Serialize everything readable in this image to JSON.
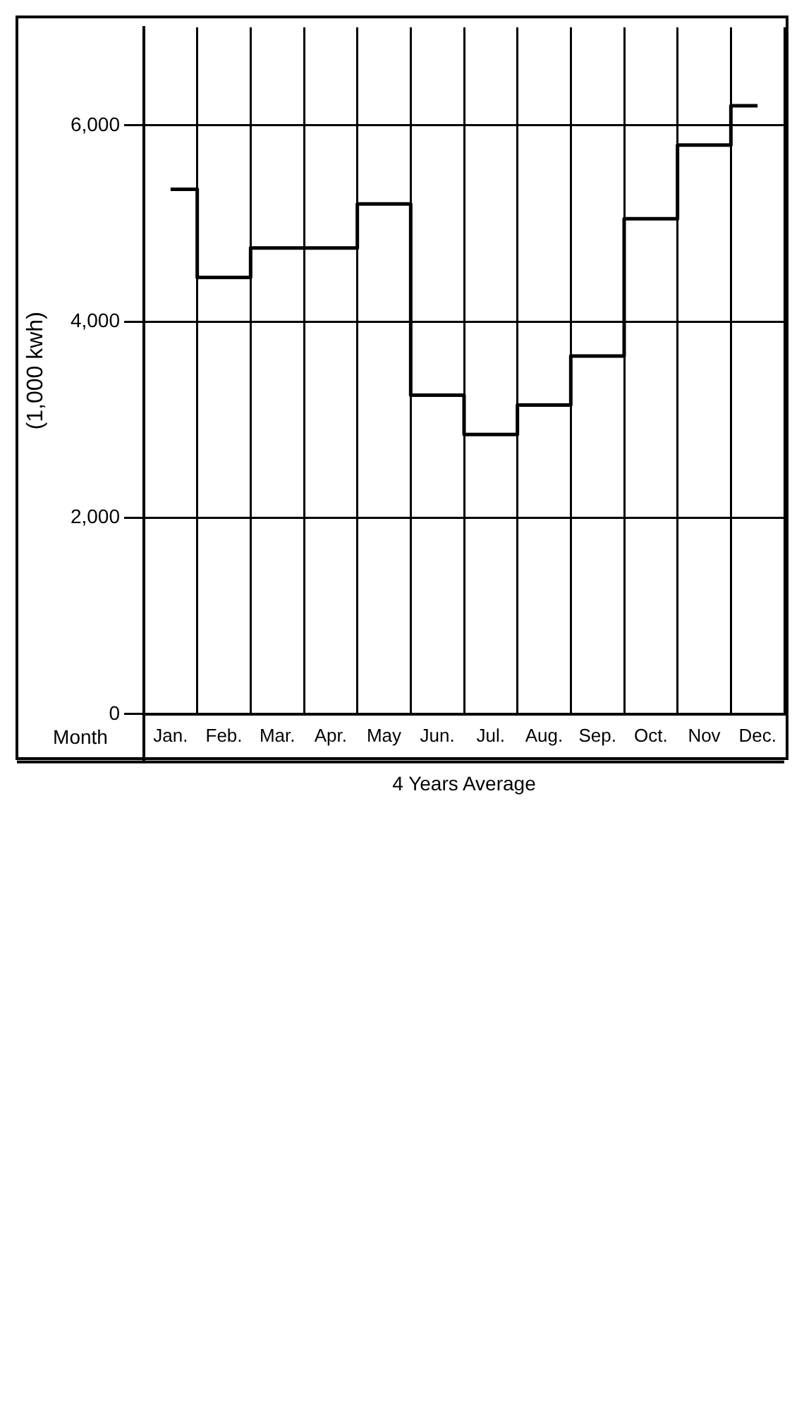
{
  "chart_data": {
    "type": "step",
    "categories": [
      "Jan.",
      "Feb.",
      "Mar.",
      "Apr.",
      "May",
      "Jun.",
      "Jul.",
      "Aug.",
      "Sep.",
      "Oct.",
      "Nov",
      "Dec."
    ],
    "values": [
      5350,
      4450,
      4750,
      4750,
      5200,
      3250,
      2850,
      3150,
      3650,
      5050,
      5800,
      6200
    ],
    "color": "#000000",
    "xlabel": "Month",
    "ylabel": "(1,000 kwh)",
    "annotations": [
      "4 Years Average"
    ],
    "ylim": [
      0,
      7000
    ],
    "yticks": [
      {
        "value": 0,
        "label": "0"
      },
      {
        "value": 2000,
        "label": "2,000"
      },
      {
        "value": 4000,
        "label": "4,000"
      },
      {
        "value": 6000,
        "label": "6,000"
      }
    ],
    "grid": true,
    "legend": false
  }
}
